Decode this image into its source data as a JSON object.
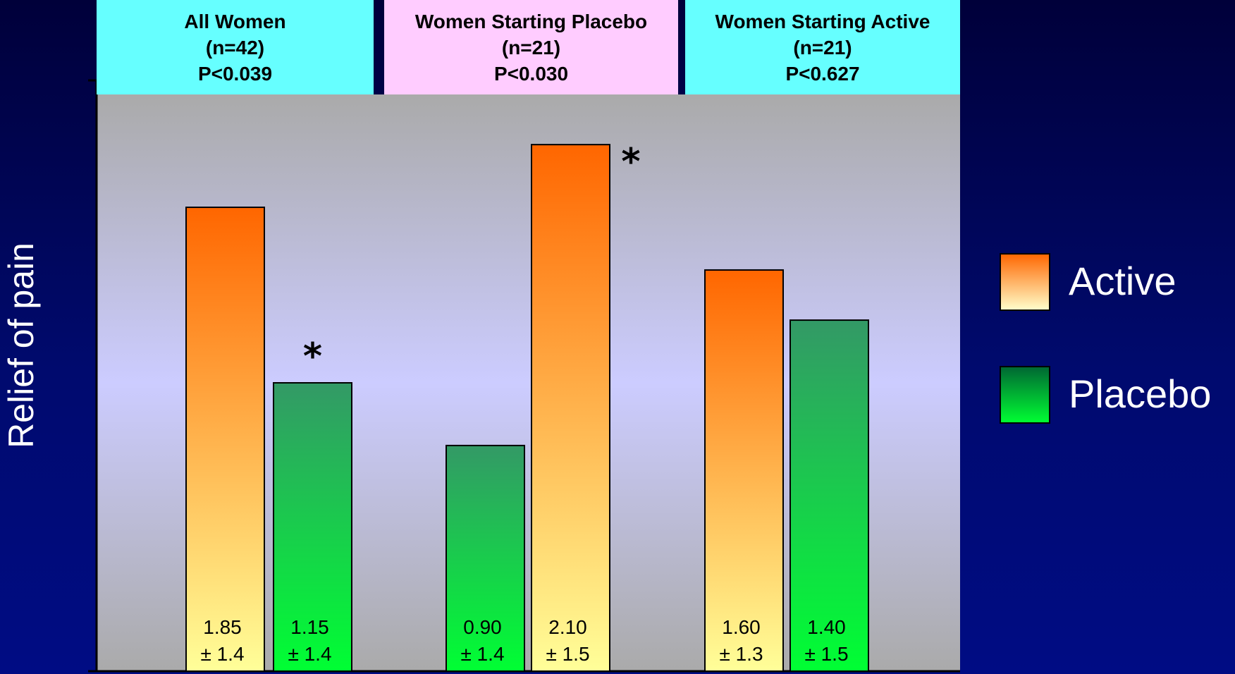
{
  "chart_data": {
    "type": "bar",
    "ylabel": "Relief of pain",
    "ylim": [
      0,
      2.3
    ],
    "groups": [
      {
        "title": "All Women",
        "n": "(n=42)",
        "p": "P<0.039",
        "header_color": "#66ffff",
        "bars": [
          {
            "series": "Active",
            "value": 1.85,
            "label_value": "1.85",
            "label_sd": "± 1.4",
            "star": false
          },
          {
            "series": "Placebo",
            "value": 1.15,
            "label_value": "1.15",
            "label_sd": "± 1.4",
            "star": true
          }
        ]
      },
      {
        "title": "Women Starting Placebo",
        "n": "(n=21)",
        "p": "P<0.030",
        "header_color": "#ffccff",
        "bars": [
          {
            "series": "Placebo",
            "value": 0.9,
            "label_value": "0.90",
            "label_sd": "± 1.4",
            "star": false
          },
          {
            "series": "Active",
            "value": 2.1,
            "label_value": "2.10",
            "label_sd": "± 1.5",
            "star": true
          }
        ]
      },
      {
        "title": "Women Starting Active",
        "n": "(n=21)",
        "p": "P<0.627",
        "header_color": "#66ffff",
        "bars": [
          {
            "series": "Active",
            "value": 1.6,
            "label_value": "1.60",
            "label_sd": "± 1.3",
            "star": false
          },
          {
            "series": "Placebo",
            "value": 1.4,
            "label_value": "1.40",
            "label_sd": "± 1.5",
            "star": false
          }
        ]
      }
    ],
    "legend": {
      "placement": "right",
      "items": [
        {
          "name": "Active",
          "color_top": "#ff6600",
          "color_bottom": "#ffffcc"
        },
        {
          "name": "Placebo",
          "color_top": "#006633",
          "color_bottom": "#00ff33"
        }
      ]
    },
    "star_symbol": "*",
    "colors": {
      "active_top": "#ff6600",
      "active_bottom": "#ffff99",
      "placebo_top": "#339966",
      "placebo_bottom": "#00ff33",
      "plot_top": "#aaaaaa",
      "plot_mid": "#ccccff",
      "plot_bottom": "#aaaaaa"
    }
  }
}
